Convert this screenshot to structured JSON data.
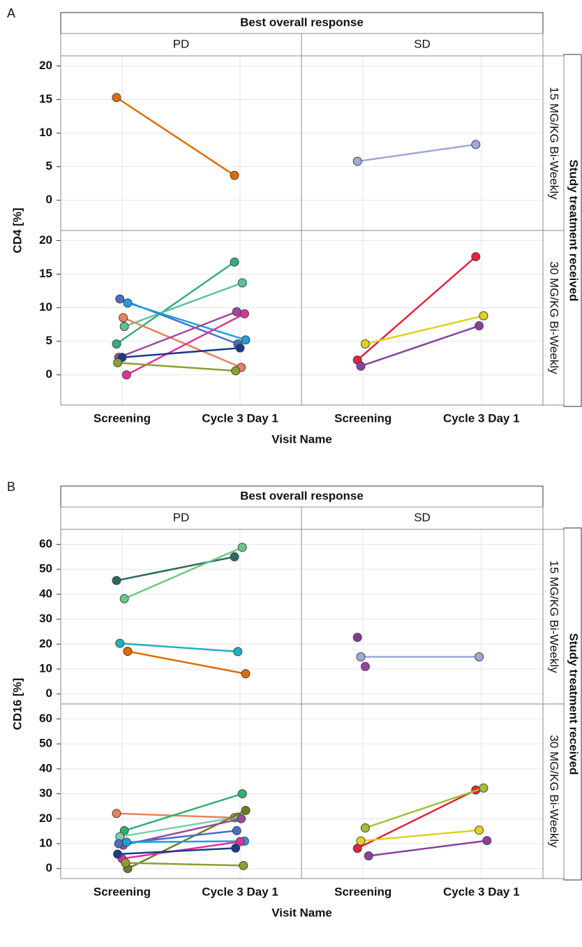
{
  "chart_data": [
    {
      "type": "line",
      "panel_label": "A",
      "title": "Best overall response",
      "facet_columns": [
        "PD",
        "SD"
      ],
      "facet_title": "Study treatment received",
      "x_label": "Visit Name",
      "y_label": "CD4 [%]",
      "categories": [
        "Screening",
        "Cycle 3 Day 1"
      ],
      "ylim": [
        -4.5,
        21.5
      ],
      "yticks": [
        0,
        5,
        10,
        15,
        20
      ],
      "grid": true,
      "facet_rows": [
        {
          "label": "15 MG/KG Bi-Weekly",
          "panels": [
            {
              "series": [
                {
                  "color": "#e06c00",
                  "values": [
                    15.3,
                    3.7
                  ]
                }
              ]
            },
            {
              "series": [
                {
                  "color": "#9fa8d8",
                  "values": [
                    5.8,
                    8.3
                  ]
                }
              ]
            }
          ]
        },
        {
          "label": "30 MG/KG Bi-Weekly",
          "panels": [
            {
              "series": [
                {
                  "color": "#3aaa80",
                  "values": [
                    4.6,
                    16.8
                  ]
                },
                {
                  "color": "#5cc098",
                  "values": [
                    7.2,
                    13.7
                  ]
                },
                {
                  "color": "#4a6cc8",
                  "values": [
                    11.3,
                    4.6
                  ]
                },
                {
                  "color": "#1aa0dc",
                  "values": [
                    10.7,
                    5.2
                  ]
                },
                {
                  "color": "#e8805a",
                  "values": [
                    8.5,
                    1.1
                  ]
                },
                {
                  "color": "#9b4a9b",
                  "values": [
                    2.6,
                    9.4
                  ]
                },
                {
                  "color": "#e0309a",
                  "values": [
                    0,
                    9.1
                  ]
                },
                {
                  "color": "#1a3a8a",
                  "values": [
                    2.6,
                    4.0
                  ]
                },
                {
                  "color": "#8aa030",
                  "values": [
                    1.8,
                    0.6
                  ]
                }
              ]
            },
            {
              "series": [
                {
                  "color": "#e8203a",
                  "values": [
                    2.2,
                    17.6
                  ]
                },
                {
                  "color": "#e0d020",
                  "values": [
                    4.6,
                    8.8
                  ]
                },
                {
                  "color": "#8a40a0",
                  "values": [
                    1.3,
                    7.3
                  ]
                }
              ]
            }
          ]
        }
      ]
    },
    {
      "type": "line",
      "panel_label": "B",
      "title": "Best overall response",
      "facet_columns": [
        "PD",
        "SD"
      ],
      "facet_title": "Study treatment received",
      "x_label": "Visit Name",
      "y_label": "CD16 [%]",
      "categories": [
        "Screening",
        "Cycle 3 Day 1"
      ],
      "ylim": [
        -4,
        66
      ],
      "yticks": [
        0,
        10,
        20,
        30,
        40,
        50,
        60
      ],
      "grid": true,
      "facet_rows": [
        {
          "label": "15 MG/KG Bi-Weekly",
          "panels": [
            {
              "series": [
                {
                  "color": "#2a6a60",
                  "values": [
                    45.5,
                    55
                  ]
                },
                {
                  "color": "#6ac880",
                  "values": [
                    38.2,
                    58.8
                  ]
                },
                {
                  "color": "#20b0c0",
                  "values": [
                    20.3,
                    17
                  ]
                },
                {
                  "color": "#e06c00",
                  "values": [
                    17.1,
                    8.1
                  ]
                }
              ]
            },
            {
              "series": [
                {
                  "color": "#8a3a8a",
                  "values": [
                    22.7,
                    null
                  ]
                },
                {
                  "color": "#9a40a0",
                  "values": [
                    11,
                    null
                  ]
                },
                {
                  "color": "#9fa8d8",
                  "values": [
                    14.9,
                    14.9
                  ]
                }
              ]
            }
          ]
        },
        {
          "label": "30 MG/KG Bi-Weekly",
          "panels": [
            {
              "series": [
                {
                  "color": "#e8805a",
                  "values": [
                    22.1,
                    20.4
                  ]
                },
                {
                  "color": "#30b070",
                  "values": [
                    15.2,
                    30
                  ]
                },
                {
                  "color": "#7ad0a8",
                  "values": [
                    12.8,
                    20.6
                  ]
                },
                {
                  "color": "#707a20",
                  "values": [
                    0,
                    23.3
                  ]
                },
                {
                  "color": "#9b4a9b",
                  "values": [
                    9.4,
                    20
                  ]
                },
                {
                  "color": "#4a6cc8",
                  "values": [
                    10,
                    15.2
                  ]
                },
                {
                  "color": "#1aa0dc",
                  "values": [
                    10.6,
                    11
                  ]
                },
                {
                  "color": "#e0309a",
                  "values": [
                    4,
                    10.8
                  ]
                },
                {
                  "color": "#1a3a8a",
                  "values": [
                    5.8,
                    8.2
                  ]
                },
                {
                  "color": "#8aa030",
                  "values": [
                    2.3,
                    1.2
                  ]
                }
              ]
            },
            {
              "series": [
                {
                  "color": "#e8203a",
                  "values": [
                    8.1,
                    31.5
                  ]
                },
                {
                  "color": "#a0c030",
                  "values": [
                    16.3,
                    32.3
                  ]
                },
                {
                  "color": "#e0d020",
                  "values": [
                    11.1,
                    15.4
                  ]
                },
                {
                  "color": "#8a40a0",
                  "values": [
                    5.1,
                    11.2
                  ]
                }
              ]
            }
          ]
        }
      ]
    }
  ]
}
